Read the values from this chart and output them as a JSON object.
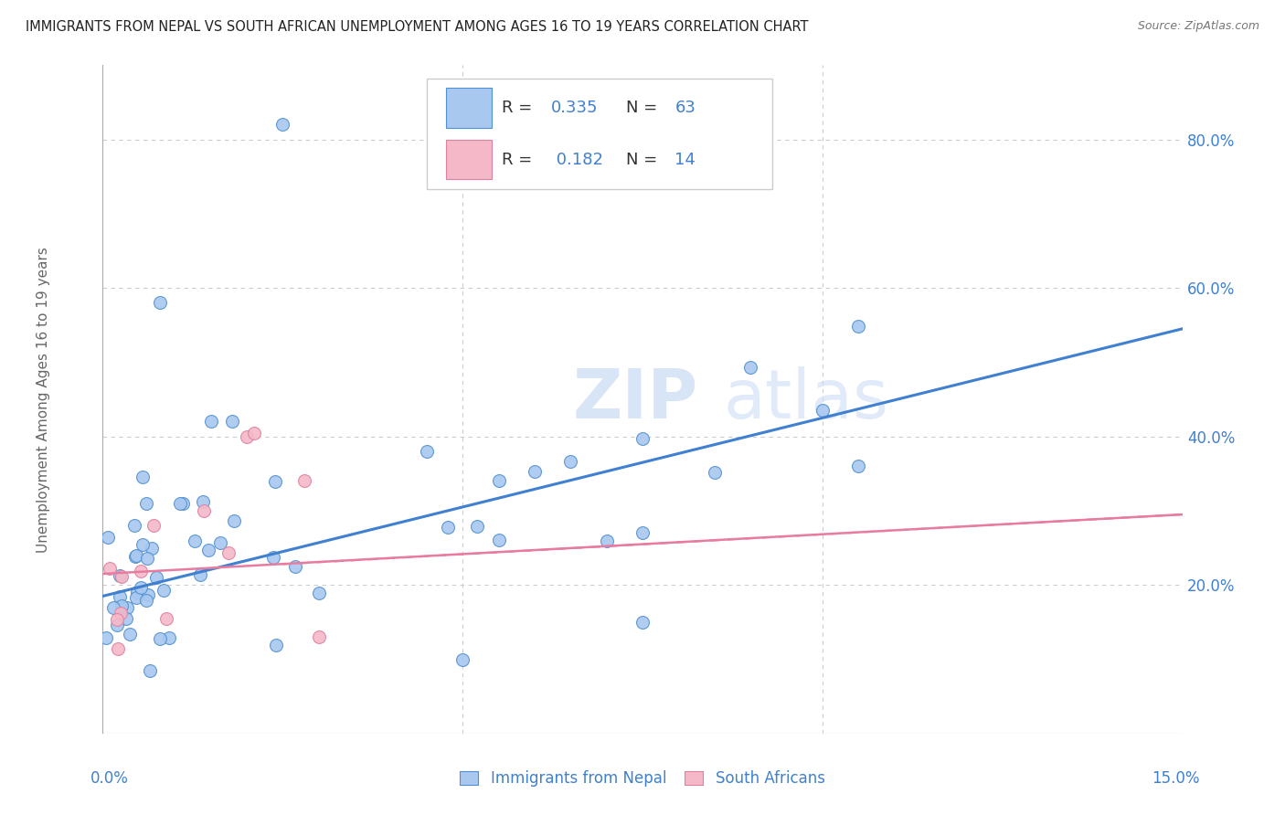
{
  "title": "IMMIGRANTS FROM NEPAL VS SOUTH AFRICAN UNEMPLOYMENT AMONG AGES 16 TO 19 YEARS CORRELATION CHART",
  "source": "Source: ZipAtlas.com",
  "ylabel": "Unemployment Among Ages 16 to 19 years",
  "xlim": [
    0.0,
    0.15
  ],
  "ylim": [
    0.0,
    0.9
  ],
  "y_ticks_right": [
    0.2,
    0.4,
    0.6,
    0.8
  ],
  "y_tick_labels_right": [
    "20.0%",
    "40.0%",
    "60.0%",
    "80.0%"
  ],
  "nepal_color": "#a8c8f0",
  "sa_color": "#f4b8c8",
  "nepal_edge_color": "#5090d0",
  "sa_edge_color": "#e080a0",
  "nepal_line_color": "#4080d0",
  "sa_line_color": "#e87ca0",
  "text_blue": "#4080d0",
  "R_nepal": 0.335,
  "N_nepal": 63,
  "R_sa": 0.182,
  "N_sa": 14,
  "legend_label_nepal": "Immigrants from Nepal",
  "legend_label_sa": "South Africans",
  "watermark_zip": "ZIP",
  "watermark_atlas": "atlas",
  "nepal_trend_x": [
    0.0,
    0.15
  ],
  "nepal_trend_y": [
    0.185,
    0.545
  ],
  "sa_trend_x": [
    0.0,
    0.15
  ],
  "sa_trend_y": [
    0.215,
    0.295
  ],
  "background_color": "#ffffff",
  "grid_color": "#cccccc"
}
